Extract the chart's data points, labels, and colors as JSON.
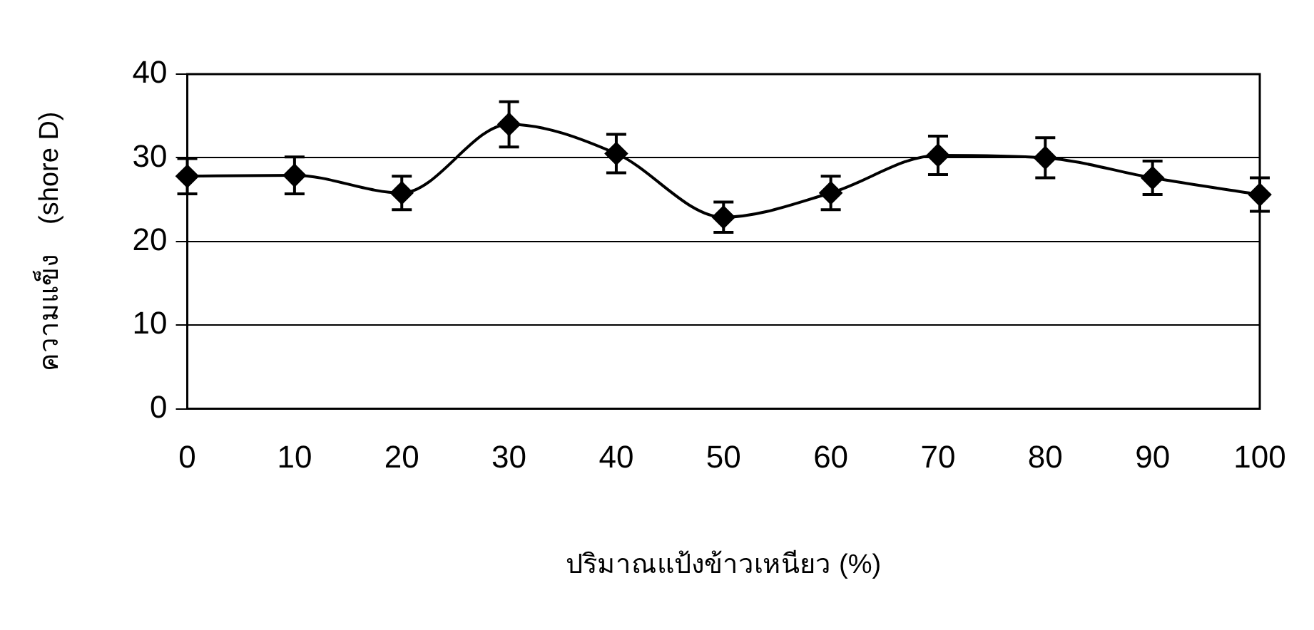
{
  "chart_data": {
    "type": "line",
    "xlabel": "ปริมาณแป้งข้าวเหนียว (%)",
    "ylabel": "ความแข็ง    (shore D)",
    "categories": [
      "0",
      "10",
      "20",
      "30",
      "40",
      "50",
      "60",
      "70",
      "80",
      "90",
      "100"
    ],
    "series": [
      {
        "color": "#000000",
        "values": [
          27.8,
          27.9,
          25.8,
          34,
          30.5,
          22.9,
          25.8,
          30.3,
          30,
          27.6,
          25.6
        ],
        "errors": [
          2.1,
          2.2,
          2,
          2.7,
          2.3,
          1.8,
          2,
          2.3,
          2.4,
          2,
          2
        ]
      }
    ],
    "ylim": [
      0,
      40
    ],
    "yticks": [
      0,
      10,
      20,
      30,
      40
    ],
    "grid": "y",
    "legend": false,
    "marker": "diamond",
    "line_style": "solid"
  }
}
